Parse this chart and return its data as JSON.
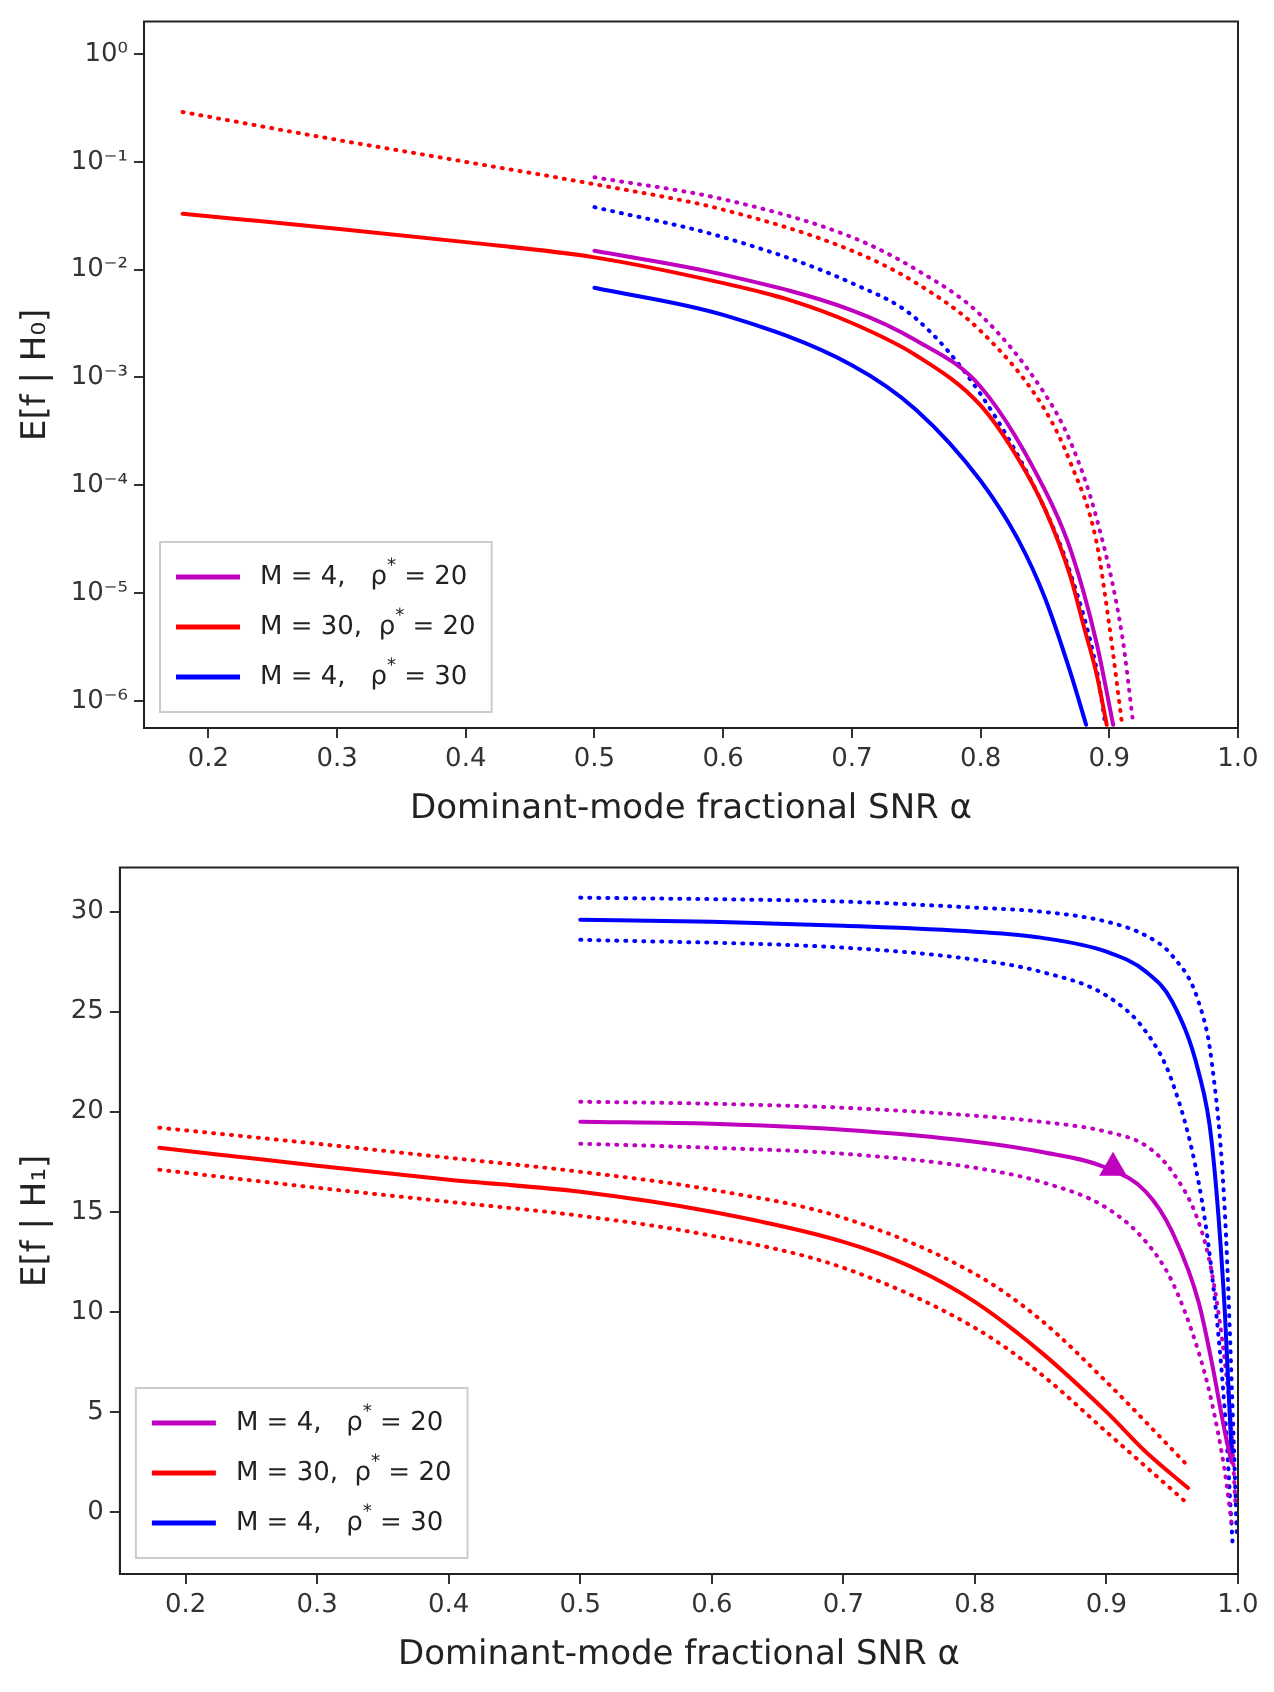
{
  "chart_data": [
    {
      "type": "line",
      "xlabel": "Dominant-mode fractional SNR α",
      "ylabel": "E[f | H₀]",
      "log": "y",
      "grid": false,
      "legend": "bottom left",
      "xlim": [
        0.15,
        1.0
      ],
      "xticks": [
        0.2,
        0.3,
        0.4,
        0.5,
        0.6,
        0.7,
        0.8,
        0.9,
        {
          "value": 1.0,
          "label": "1.0"
        }
      ],
      "ylim": [
        5.6e-07,
        2
      ],
      "yticks": [
        {
          "value": 1e-06,
          "label": "10⁻⁶"
        },
        {
          "value": 1e-05,
          "label": "10⁻⁵"
        },
        {
          "value": 0.0001,
          "label": "10⁻⁴"
        },
        {
          "value": 0.001,
          "label": "10⁻³"
        },
        {
          "value": 0.01,
          "label": "10⁻²"
        },
        {
          "value": 0.1,
          "label": "10⁻¹"
        },
        {
          "value": 1,
          "label": "10⁰"
        }
      ],
      "series": [
        {
          "name": "M = 4,   ρ$^{*}$ = 20",
          "color": "#bf00bf",
          "line_style": "solid",
          "x": [
            0.5,
            0.6,
            0.7,
            0.75,
            0.8,
            0.85,
            0.87,
            0.89,
            0.903
          ],
          "values": [
            0.015,
            0.009,
            0.0042,
            0.0022,
            0.00082,
            9e-05,
            2.5e-05,
            3.5e-06,
            6e-07
          ]
        },
        {
          "name": "M = 30,  ρ$^{*}$ = 20",
          "color": "#ff0000",
          "line_style": "solid",
          "x": [
            0.18,
            0.3,
            0.4,
            0.5,
            0.6,
            0.65,
            0.7,
            0.75,
            0.8,
            0.83,
            0.85,
            0.87,
            0.88,
            0.89,
            0.898
          ],
          "values": [
            0.033,
            0.024,
            0.018,
            0.013,
            0.0075,
            0.0053,
            0.0032,
            0.0016,
            0.00055,
            0.00017,
            6e-05,
            1.4e-05,
            5e-06,
            1.8e-06,
            6e-07
          ]
        },
        {
          "name": "M = 4,   ρ$^{*}$ = 30",
          "color": "#0000ff",
          "line_style": "solid",
          "x": [
            0.5,
            0.6,
            0.7,
            0.75,
            0.8,
            0.83,
            0.85,
            0.87,
            0.882
          ],
          "values": [
            0.0068,
            0.0038,
            0.0013,
            0.0005,
            0.00011,
            3e-05,
            9e-06,
            1.8e-06,
            6e-07
          ]
        },
        {
          "color": "#bf00bf",
          "line_style": "dotted",
          "x": [
            0.5,
            0.6,
            0.7,
            0.75,
            0.8,
            0.85,
            0.87,
            0.89,
            0.91,
            0.918
          ],
          "values": [
            0.072,
            0.045,
            0.02,
            0.01,
            0.0038,
            0.0007,
            0.00025,
            5e-05,
            4e-06,
            7e-07
          ]
        },
        {
          "color": "#ff0000",
          "line_style": "dotted",
          "x": [
            0.18,
            0.3,
            0.4,
            0.5,
            0.6,
            0.7,
            0.75,
            0.8,
            0.85,
            0.87,
            0.89,
            0.9,
            0.91
          ],
          "values": [
            0.29,
            0.16,
            0.1,
            0.062,
            0.036,
            0.015,
            0.0075,
            0.0027,
            0.0005,
            0.00016,
            3e-05,
            5e-06,
            6e-07
          ]
        },
        {
          "color": "#0000ff",
          "line_style": "dotted",
          "x": [
            0.5,
            0.6,
            0.7,
            0.75,
            0.8,
            0.85,
            0.87,
            0.89,
            0.897
          ],
          "values": [
            0.038,
            0.02,
            0.0075,
            0.0035,
            0.0007,
            6e-05,
            1.5e-05,
            2e-06,
            6e-07
          ]
        }
      ]
    },
    {
      "type": "line",
      "xlabel": "Dominant-mode fractional SNR α",
      "ylabel": "E[f | H₁]",
      "grid": false,
      "legend": "bottom left",
      "xlim": [
        0.15,
        1.0
      ],
      "xticks": [
        0.2,
        0.3,
        0.4,
        0.5,
        0.6,
        0.7,
        0.8,
        0.9,
        {
          "value": 1.0,
          "label": "1.0"
        }
      ],
      "ylim": [
        -3.1,
        32.2
      ],
      "yticks": [
        0,
        5,
        10,
        15,
        20,
        25,
        30
      ],
      "series": [
        {
          "name": "M = 4,   ρ$^{*}$ = 20",
          "color": "#bf00bf",
          "line_style": "solid",
          "x": [
            0.5,
            0.6,
            0.7,
            0.8,
            0.85,
            0.9,
            0.93,
            0.95,
            0.97,
            0.98,
            0.99,
            0.995
          ],
          "values": [
            19.5,
            19.4,
            19.1,
            18.5,
            18,
            17.2,
            16,
            14,
            10.5,
            7.5,
            4,
            2.5
          ]
        },
        {
          "name": "M = 30,  ρ$^{*}$ = 20",
          "color": "#ff0000",
          "line_style": "solid",
          "x": [
            0.18,
            0.3,
            0.4,
            0.5,
            0.6,
            0.7,
            0.75,
            0.8,
            0.85,
            0.9,
            0.93,
            0.962
          ],
          "values": [
            18.2,
            17.3,
            16.6,
            16,
            15,
            13.5,
            12.3,
            10.5,
            8,
            5,
            3,
            1.2
          ]
        },
        {
          "name": "M = 4,   ρ$^{*}$ = 30",
          "color": "#0000ff",
          "line_style": "solid",
          "x": [
            0.5,
            0.6,
            0.7,
            0.8,
            0.85,
            0.9,
            0.93,
            0.95,
            0.97,
            0.98,
            0.99,
            0.995
          ],
          "values": [
            29.6,
            29.5,
            29.3,
            29,
            28.7,
            28,
            27,
            25.5,
            22,
            18.5,
            10,
            3
          ]
        },
        {
          "color": "#bf00bf",
          "line_style": "dotted",
          "x": [
            0.5,
            0.6,
            0.7,
            0.8,
            0.85,
            0.9,
            0.93,
            0.95,
            0.97,
            0.98,
            0.99,
            0.995,
            0.998
          ],
          "values": [
            20.5,
            20.4,
            20.2,
            19.8,
            19.5,
            19,
            18.3,
            17,
            14.5,
            12,
            7.5,
            4,
            0.5
          ]
        },
        {
          "color": "#bf00bf",
          "line_style": "dotted",
          "x": [
            0.5,
            0.6,
            0.7,
            0.8,
            0.85,
            0.9,
            0.93,
            0.95,
            0.97,
            0.98,
            0.99,
            0.995
          ],
          "values": [
            18.4,
            18.2,
            17.9,
            17.2,
            16.5,
            15.2,
            13.5,
            11.5,
            8,
            5.5,
            2,
            -0.5
          ]
        },
        {
          "color": "#ff0000",
          "line_style": "dotted",
          "x": [
            0.18,
            0.3,
            0.4,
            0.5,
            0.6,
            0.7,
            0.8,
            0.85,
            0.9,
            0.962
          ],
          "values": [
            19.2,
            18.4,
            17.7,
            17,
            16.1,
            14.7,
            11.9,
            9.6,
            6.5,
            2.3
          ]
        },
        {
          "color": "#ff0000",
          "line_style": "dotted",
          "x": [
            0.18,
            0.3,
            0.4,
            0.5,
            0.6,
            0.7,
            0.8,
            0.85,
            0.9,
            0.962
          ],
          "values": [
            17.1,
            16.2,
            15.5,
            14.8,
            13.8,
            12.2,
            9.2,
            6.9,
            4,
            0.4
          ]
        },
        {
          "color": "#0000ff",
          "line_style": "dotted",
          "x": [
            0.5,
            0.7,
            0.8,
            0.85,
            0.9,
            0.93,
            0.95,
            0.97,
            0.98,
            0.99,
            0.997,
            0.999
          ],
          "values": [
            30.7,
            30.5,
            30.2,
            30,
            29.5,
            28.8,
            27.8,
            25.5,
            22.5,
            15,
            3,
            -1
          ]
        },
        {
          "color": "#0000ff",
          "line_style": "dotted",
          "x": [
            0.5,
            0.7,
            0.8,
            0.85,
            0.9,
            0.93,
            0.95,
            0.97,
            0.98,
            0.99,
            0.996
          ],
          "values": [
            28.6,
            28.2,
            27.6,
            27,
            25.8,
            24,
            21.5,
            16.5,
            12,
            5,
            -1.7
          ]
        },
        {
          "type": "scatter",
          "color": "#bf00bf",
          "marker": "triangle",
          "x": [
            0.905
          ],
          "values": [
            17.2
          ]
        }
      ]
    }
  ]
}
